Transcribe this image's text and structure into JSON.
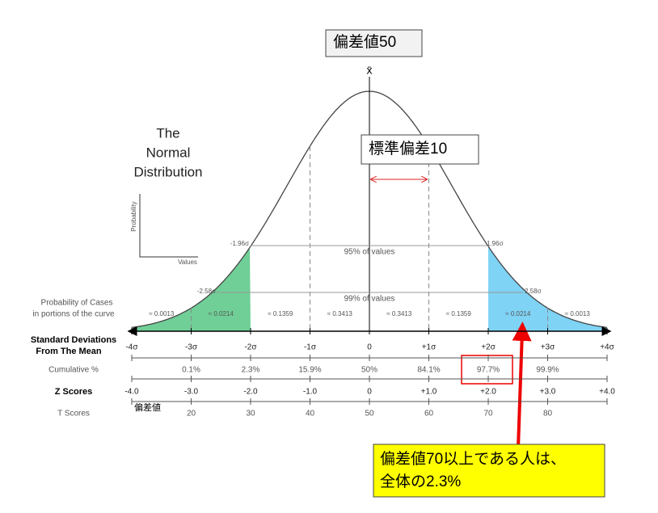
{
  "header": {
    "mean_label": "偏差値50",
    "mean_symbol": "x̄"
  },
  "sd_label": "標準偏差10",
  "title": [
    "The",
    "Normal",
    "Distribution"
  ],
  "inset": {
    "y_label": "Probability",
    "x_label": "Values"
  },
  "interval_95": {
    "left": "-1.96σ",
    "right": "1.96σ",
    "label": "95% of values"
  },
  "interval_99": {
    "left": "-2.58σ",
    "right": "2.58σ",
    "label": "99% of values"
  },
  "probability": {
    "label": [
      "Probability of Cases",
      "in portions of the curve"
    ],
    "values": [
      "≈ 0.0013",
      "≈ 0.0214",
      "≈ 0.1359",
      "≈ 0.3413",
      "≈ 0.3413",
      "≈ 0.1359",
      "≈ 0.0214",
      "≈ 0.0013"
    ]
  },
  "sd_row": {
    "label": [
      "Standard Deviations",
      "From The Mean"
    ],
    "ticks": [
      "-4σ",
      "-3σ",
      "-2σ",
      "-1σ",
      "0",
      "+1σ",
      "+2σ",
      "+3σ",
      "+4σ"
    ]
  },
  "cumulative": {
    "label": "Cumulative %",
    "values": [
      "0.1%",
      "2.3%",
      "15.9%",
      "50%",
      "84.1%",
      "97.7%",
      "99.9%"
    ]
  },
  "z_scores": {
    "label": "Z Scores",
    "ticks": [
      "-4.0",
      "-3.0",
      "-2.0",
      "-1.0",
      "0",
      "+1.0",
      "+2.0",
      "+3.0",
      "+4.0"
    ]
  },
  "t_scores": {
    "label": "T Scores",
    "note": "偏差値",
    "values": [
      "20",
      "30",
      "40",
      "50",
      "60",
      "70",
      "80"
    ]
  },
  "callout": [
    "偏差値70以上である人は、",
    "全体の2.3%"
  ]
}
